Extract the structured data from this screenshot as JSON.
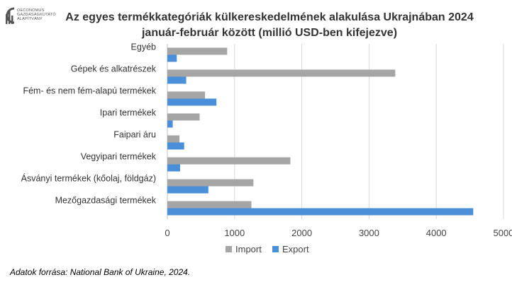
{
  "logo": {
    "lines": [
      "OECONOMUS",
      "GAZDASÁGKUTATÓ",
      "ALAPÍTVÁNY"
    ]
  },
  "source": "Adatok forrása: National Bank of Ukraine, 2024.",
  "chart_data": {
    "type": "bar",
    "orientation": "horizontal",
    "title_line1": "Az egyes termékkategóriák külkereskedelmének alakulása Ukrajnában 2024",
    "title_line2": "január-február között (millió USD-ben kifejezve)",
    "categories": [
      "Egyéb",
      "Gépek és alkatrészek",
      "Fém- és nem fém-alapú termékek",
      "Ipari termékek",
      "Faipari áru",
      "Vegyipari termékek",
      "Ásványi termékek (kőolaj, földgáz)",
      "Mezőgazdasági termékek"
    ],
    "series": [
      {
        "name": "Import",
        "color": "#a5a5a5",
        "values": [
          890,
          3390,
          560,
          480,
          180,
          1830,
          1280,
          1250
        ]
      },
      {
        "name": "Export",
        "color": "#4a90d9",
        "values": [
          140,
          280,
          730,
          80,
          250,
          190,
          610,
          4550
        ]
      }
    ],
    "xlim": [
      0,
      5000
    ],
    "xticks": [
      0,
      1000,
      2000,
      3000,
      4000,
      5000
    ],
    "grid": true,
    "legend": "bottom"
  }
}
